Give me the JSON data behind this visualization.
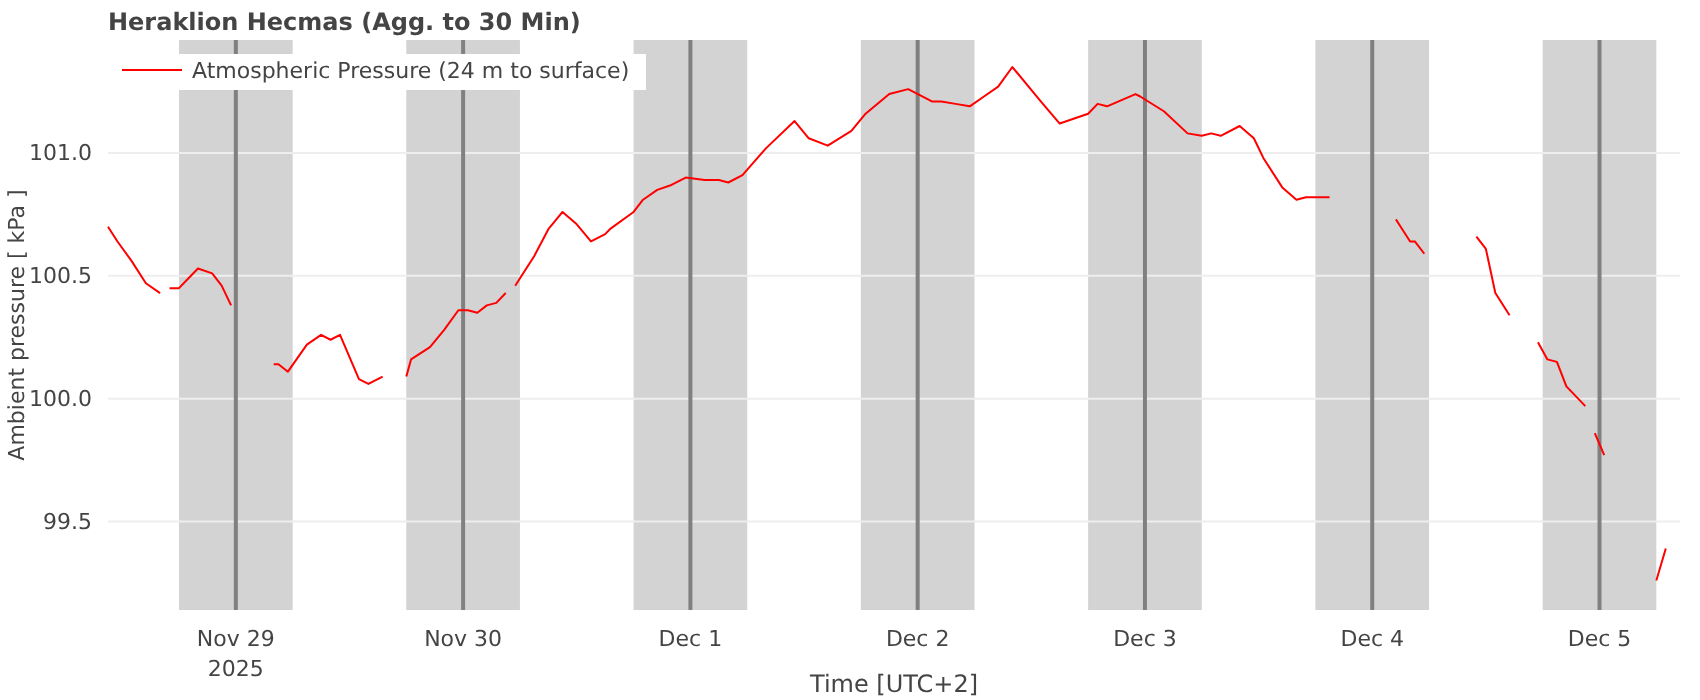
{
  "chart_data": {
    "type": "line",
    "title": "Heraklion Hecmas (Agg. to 30 Min)",
    "xlabel": "Time [UTC+2]",
    "ylabel": "Ambient pressure [ kPa ]",
    "xlim": [
      "2025-11-28T10:30",
      "2025-12-05T08:30"
    ],
    "xticks": [
      {
        "value": "2025-11-29",
        "label": "Nov 29\n2025"
      },
      {
        "value": "2025-11-30",
        "label": "Nov 30"
      },
      {
        "value": "2025-12-01",
        "label": "Dec 1"
      },
      {
        "value": "2025-12-02",
        "label": "Dec 2"
      },
      {
        "value": "2025-12-03",
        "label": "Dec 3"
      },
      {
        "value": "2025-12-04",
        "label": "Dec 4"
      },
      {
        "value": "2025-12-05",
        "label": "Dec 5"
      }
    ],
    "ylim": [
      99.14,
      101.46
    ],
    "yticks": [
      {
        "value": 99.5,
        "label": "99.5"
      },
      {
        "value": 100,
        "label": "100.0"
      },
      {
        "value": 100.5,
        "label": "100.5"
      },
      {
        "value": 101,
        "label": "101.0"
      }
    ],
    "grid": "y",
    "legend": "top left",
    "line_style": "solid",
    "marker": "none",
    "bands": [
      {
        "axis": "x",
        "from": "2025-11-28T18:00",
        "to": "2025-11-29T06:00",
        "color": "#d3d3d3"
      },
      {
        "axis": "x",
        "from": "2025-11-29T18:00",
        "to": "2025-11-30T06:00",
        "color": "#d3d3d3"
      },
      {
        "axis": "x",
        "from": "2025-11-30T18:00",
        "to": "2025-12-01T06:00",
        "color": "#d3d3d3"
      },
      {
        "axis": "x",
        "from": "2025-12-01T18:00",
        "to": "2025-12-02T06:00",
        "color": "#d3d3d3"
      },
      {
        "axis": "x",
        "from": "2025-12-02T18:00",
        "to": "2025-12-03T06:00",
        "color": "#d3d3d3"
      },
      {
        "axis": "x",
        "from": "2025-12-03T18:00",
        "to": "2025-12-04T06:00",
        "color": "#d3d3d3"
      },
      {
        "axis": "x",
        "from": "2025-12-04T18:00",
        "to": "2025-12-05T06:00",
        "color": "#d3d3d3"
      }
    ],
    "ref_lines": [
      {
        "axis": "x",
        "value": "2025-11-29",
        "color": "#808080"
      },
      {
        "axis": "x",
        "value": "2025-11-30",
        "color": "#808080"
      },
      {
        "axis": "x",
        "value": "2025-12-01",
        "color": "#808080"
      },
      {
        "axis": "x",
        "value": "2025-12-02",
        "color": "#808080"
      },
      {
        "axis": "x",
        "value": "2025-12-03",
        "color": "#808080"
      },
      {
        "axis": "x",
        "value": "2025-12-04",
        "color": "#808080"
      },
      {
        "axis": "x",
        "value": "2025-12-05",
        "color": "#808080"
      }
    ],
    "series": [
      {
        "name": "Atmospheric Pressure (24 m to surface)",
        "color": "#ff0000",
        "x": [
          "2025-11-28T10:30",
          "2025-11-28T11:30",
          "2025-11-28T13:00",
          "2025-11-28T14:30",
          "2025-11-28T16:00",
          "2025-11-28T16:30",
          "2025-11-28T17:00",
          "2025-11-28T18:00",
          "2025-11-28T19:00",
          "2025-11-28T20:00",
          "2025-11-28T21:30",
          "2025-11-28T22:30",
          "2025-11-28T23:30",
          "2025-11-29T02:00",
          "2025-11-29T04:00",
          "2025-11-29T04:30",
          "2025-11-29T05:30",
          "2025-11-29T07:30",
          "2025-11-29T09:00",
          "2025-11-29T10:00",
          "2025-11-29T11:00",
          "2025-11-29T13:00",
          "2025-11-29T14:00",
          "2025-11-29T15:30",
          "2025-11-29T17:00",
          "2025-11-29T18:00",
          "2025-11-29T18:30",
          "2025-11-29T20:30",
          "2025-11-29T22:00",
          "2025-11-29T23:30",
          "2025-11-30T00:30",
          "2025-11-30T01:30",
          "2025-11-30T02:30",
          "2025-11-30T03:30",
          "2025-11-30T04:30",
          "2025-11-30T05:00",
          "2025-11-30T05:30",
          "2025-11-30T07:30",
          "2025-11-30T09:00",
          "2025-11-30T10:30",
          "2025-11-30T12:00",
          "2025-11-30T13:30",
          "2025-11-30T15:00",
          "2025-11-30T15:30",
          "2025-11-30T18:00",
          "2025-11-30T19:00",
          "2025-11-30T20:30",
          "2025-11-30T22:00",
          "2025-11-30T23:30",
          "2025-12-01T01:30",
          "2025-12-01T03:00",
          "2025-12-01T04:00",
          "2025-12-01T05:30",
          "2025-12-01T08:00",
          "2025-12-01T11:00",
          "2025-12-01T12:30",
          "2025-12-01T14:30",
          "2025-12-01T17:00",
          "2025-12-01T18:30",
          "2025-12-01T21:00",
          "2025-12-01T23:00",
          "2025-12-02T01:30",
          "2025-12-02T02:30",
          "2025-12-02T04:00",
          "2025-12-02T05:30",
          "2025-12-02T07:00",
          "2025-12-02T08:30",
          "2025-12-02T10:00",
          "2025-12-02T13:00",
          "2025-12-02T15:00",
          "2025-12-02T18:00",
          "2025-12-02T19:00",
          "2025-12-02T20:00",
          "2025-12-02T23:00",
          "2025-12-02T23:30",
          "2025-12-03T02:00",
          "2025-12-03T04:30",
          "2025-12-03T06:00",
          "2025-12-03T07:00",
          "2025-12-03T08:00",
          "2025-12-03T10:00",
          "2025-12-03T11:30",
          "2025-12-03T12:30",
          "2025-12-03T14:30",
          "2025-12-03T16:00",
          "2025-12-03T17:00",
          "2025-12-03T19:30",
          "2025-12-04T00:00",
          "2025-12-04T02:30",
          "2025-12-04T03:00",
          "2025-12-04T04:00",
          "2025-12-04T04:30",
          "2025-12-04T05:30",
          "2025-12-04T08:00",
          "2025-12-04T11:00",
          "2025-12-04T12:00",
          "2025-12-04T13:00",
          "2025-12-04T14:30",
          "2025-12-04T16:00",
          "2025-12-04T17:30",
          "2025-12-04T18:30",
          "2025-12-04T19:30",
          "2025-12-04T20:30",
          "2025-12-04T22:30",
          "2025-12-04T23:00",
          "2025-12-04T23:30",
          "2025-12-05T00:30",
          "2025-12-05T03:00",
          "2025-12-05T06:00",
          "2025-12-05T07:00"
        ],
        "values": [
          100.7,
          100.64,
          100.56,
          100.47,
          100.43,
          null,
          100.45,
          100.45,
          100.49,
          100.53,
          100.51,
          100.46,
          100.38,
          null,
          100.14,
          100.14,
          100.11,
          100.22,
          100.26,
          100.24,
          100.26,
          100.08,
          100.06,
          100.09,
          null,
          100.09,
          100.16,
          100.21,
          100.28,
          100.36,
          100.36,
          100.35,
          100.38,
          100.39,
          100.43,
          null,
          100.46,
          100.58,
          100.69,
          100.76,
          100.71,
          100.64,
          100.67,
          100.69,
          100.76,
          100.81,
          100.85,
          100.87,
          100.9,
          100.89,
          100.89,
          100.88,
          100.91,
          101.02,
          101.13,
          101.06,
          101.03,
          101.09,
          101.16,
          101.24,
          101.26,
          101.21,
          101.21,
          101.2,
          101.19,
          101.23,
          101.27,
          101.35,
          101.21,
          101.12,
          101.16,
          101.2,
          101.19,
          101.24,
          101.23,
          101.17,
          101.08,
          101.07,
          101.08,
          101.07,
          101.11,
          101.06,
          100.98,
          100.86,
          100.81,
          100.82,
          100.82,
          null,
          100.73,
          100.7,
          100.64,
          100.64,
          100.59,
          null,
          100.66,
          100.61,
          100.43,
          100.34,
          null,
          100.23,
          100.16,
          100.15,
          100.05,
          99.97,
          null,
          99.86,
          99.77,
          null,
          99.26,
          99.39
        ]
      }
    ]
  }
}
